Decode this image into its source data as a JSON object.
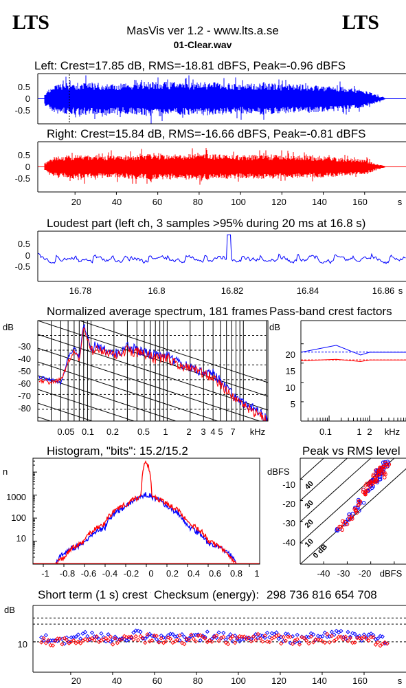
{
  "header": {
    "logo_left": "LTS",
    "logo_right": "LTS",
    "app_title": "MasVis ver 1.2 - www.lts.a.se",
    "file_name": "01-Clear.wav"
  },
  "colors": {
    "left": "#0000ff",
    "right": "#ff0000",
    "frame": "#000000",
    "background": "#ffffff"
  },
  "chart_data": [
    {
      "type": "area",
      "id": "left-waveform",
      "title": "Left: Crest=17.85 dB, RMS=-18.81 dBFS, Peak=-0.96 dBFS",
      "crest_db": 17.85,
      "rms_dbfs": -18.81,
      "peak_dbfs": -0.96,
      "y_ticks": [
        "0.5",
        "0",
        "-0.5"
      ],
      "ylim": [
        -0.85,
        0.85
      ],
      "xlim": [
        2,
        180
      ],
      "marker_x": 16.8,
      "envelope": {
        "x": [
          5,
          10,
          20,
          30,
          40,
          50,
          60,
          70,
          80,
          90,
          100,
          110,
          120,
          130,
          140,
          150,
          160,
          166,
          170
        ],
        "y": [
          0.18,
          0.5,
          0.55,
          0.55,
          0.5,
          0.55,
          0.6,
          0.55,
          0.58,
          0.55,
          0.5,
          0.55,
          0.5,
          0.5,
          0.45,
          0.4,
          0.3,
          0.12,
          0.02
        ]
      }
    },
    {
      "type": "area",
      "id": "right-waveform",
      "title": "Right: Crest=15.84 dB, RMS=-16.66 dBFS, Peak=-0.81 dBFS",
      "crest_db": 15.84,
      "rms_dbfs": -16.66,
      "peak_dbfs": -0.81,
      "y_ticks": [
        "0.5",
        "0",
        "-0.5"
      ],
      "x_ticks": [
        "20",
        "40",
        "60",
        "80",
        "100",
        "120",
        "140",
        "160",
        "s"
      ],
      "ylim": [
        -0.85,
        0.85
      ],
      "xlim": [
        2,
        180
      ],
      "envelope": {
        "x": [
          5,
          10,
          20,
          30,
          40,
          50,
          60,
          70,
          80,
          90,
          100,
          110,
          120,
          130,
          140,
          150,
          160,
          166,
          170
        ],
        "y": [
          0.12,
          0.35,
          0.4,
          0.4,
          0.38,
          0.42,
          0.45,
          0.42,
          0.45,
          0.42,
          0.4,
          0.42,
          0.4,
          0.38,
          0.35,
          0.32,
          0.25,
          0.1,
          0.02
        ]
      }
    },
    {
      "type": "line",
      "id": "loudest-part",
      "title": "Loudest part (left  ch, 3 samples >95% during 20 ms at 16.8 s)",
      "y_ticks": [
        "0.5",
        "0",
        "-0.5"
      ],
      "x_ticks": [
        "16.78",
        "16.8",
        "16.82",
        "16.84",
        "16.86",
        "s"
      ],
      "ylim": [
        -0.8,
        0.9
      ],
      "xlim": [
        16.767,
        16.87
      ],
      "peak": {
        "x": 16.8205,
        "y": 0.78
      }
    },
    {
      "type": "line",
      "id": "avg-spectrum",
      "title": "Normalized average spectrum, 181 frames",
      "ylabel": "dB",
      "y_ticks": [
        "-30",
        "-40",
        "-50",
        "-60",
        "-70",
        "-80"
      ],
      "x_ticks": [
        "0.05",
        "0.1",
        "0.2",
        "0.5",
        "1",
        "2",
        "3",
        "4",
        "5",
        "7",
        "kHz"
      ],
      "ylim": [
        -88,
        -20
      ],
      "xlim_khz": [
        0.02,
        21
      ],
      "x_scale": "log",
      "series": [
        {
          "color": "blue",
          "x": [
            0.02,
            0.03,
            0.04,
            0.05,
            0.06,
            0.07,
            0.08,
            0.1,
            0.12,
            0.15,
            0.2,
            0.3,
            0.5,
            0.7,
            1,
            1.5,
            2,
            3,
            4,
            5,
            7,
            10,
            14,
            20
          ],
          "y": [
            -58,
            -60,
            -62,
            -45,
            -38,
            -45,
            -22,
            -40,
            -36,
            -40,
            -43,
            -38,
            -42,
            -44,
            -44,
            -50,
            -52,
            -55,
            -55,
            -62,
            -70,
            -76,
            -80,
            -87
          ]
        },
        {
          "color": "red",
          "x": [
            0.02,
            0.03,
            0.04,
            0.05,
            0.06,
            0.07,
            0.08,
            0.1,
            0.12,
            0.15,
            0.2,
            0.3,
            0.5,
            0.7,
            1,
            1.5,
            2,
            3,
            4,
            5,
            7,
            10,
            14,
            20
          ],
          "y": [
            -60,
            -62,
            -60,
            -48,
            -40,
            -47,
            -24,
            -41,
            -38,
            -42,
            -44,
            -40,
            -43,
            -46,
            -45,
            -51,
            -53,
            -56,
            -58,
            -64,
            -72,
            -78,
            -82,
            -88
          ]
        }
      ]
    },
    {
      "type": "line",
      "id": "crest-vs-frequency",
      "title": "Pass-band crest factors",
      "ylabel": "dB",
      "y_ticks": [
        "20",
        "15",
        "10",
        "5"
      ],
      "x_ticks": [
        "0.1",
        "1",
        "2",
        "kHz"
      ],
      "ylim": [
        0,
        26
      ],
      "xlim_khz": [
        0.02,
        8
      ],
      "x_scale": "log",
      "series": [
        {
          "color": "blue",
          "x": [
            0.02,
            0.15,
            0.6,
            1,
            8
          ],
          "y": [
            17.8,
            19.6,
            17.1,
            17.8,
            17.8
          ]
        },
        {
          "color": "red",
          "x": [
            0.02,
            0.15,
            0.6,
            1,
            8
          ],
          "y": [
            15.6,
            16.0,
            15.4,
            15.8,
            15.8
          ]
        },
        {
          "color": "red",
          "x": [
            0.02,
            8
          ],
          "y": [
            15.84,
            15.84
          ]
        },
        {
          "color": "blue",
          "x": [
            0.02,
            8
          ],
          "y": [
            17.85,
            17.85
          ]
        }
      ]
    },
    {
      "type": "line",
      "id": "histogram",
      "title": "Histogram, \"bits\": 15.2/15.2",
      "ylabel": "n",
      "y_ticks": [
        "1000",
        "100",
        "10"
      ],
      "x_ticks": [
        "-1",
        "-0.8",
        "-0.6",
        "-0.4",
        "-0.2",
        "0",
        "0.2",
        "0.4",
        "0.6",
        "0.8",
        "1"
      ],
      "ylim_log": [
        1,
        40000
      ],
      "xlim": [
        -1.1,
        1.1
      ],
      "series": [
        {
          "color": "blue",
          "x": [
            -0.88,
            -0.8,
            -0.6,
            -0.4,
            -0.2,
            -0.05,
            0,
            0.05,
            0.2,
            0.4,
            0.6,
            0.8,
            0.88
          ],
          "y": [
            1,
            3,
            8,
            40,
            300,
            900,
            1100,
            900,
            300,
            40,
            8,
            3,
            1
          ]
        },
        {
          "color": "red",
          "x": [
            -0.88,
            -0.8,
            -0.6,
            -0.4,
            -0.2,
            -0.05,
            0,
            0.05,
            0.2,
            0.4,
            0.6,
            0.8,
            0.88
          ],
          "y": [
            1,
            2,
            10,
            60,
            400,
            900,
            30000,
            900,
            400,
            60,
            10,
            2,
            1
          ]
        }
      ]
    },
    {
      "type": "scatter",
      "id": "peak-vs-rms",
      "title": "Peak vs RMS level",
      "ylabel": "dBFS",
      "xlabel": "dBFS",
      "y_ticks": [
        "-10",
        "-20",
        "-30",
        "-40"
      ],
      "x_ticks": [
        "-40",
        "-30",
        "-20",
        "dBFS"
      ],
      "crest_lines": [
        "40",
        "30",
        "20",
        "10",
        "0 dB"
      ],
      "xlim": [
        -50,
        -5
      ],
      "ylim": [
        -50,
        0
      ],
      "series": [
        {
          "color": "blue",
          "x": [
            -34,
            -30,
            -28,
            -26,
            -24,
            -22,
            -20,
            -19,
            -18,
            -17,
            -16,
            -15,
            -14,
            -13,
            -20,
            -18,
            -16,
            -15
          ],
          "y": [
            -33,
            -30,
            -27,
            -24,
            -20,
            -16,
            -12,
            -10,
            -8,
            -6,
            -5,
            -4,
            -3,
            -2,
            -14,
            -11,
            -9,
            -7
          ]
        },
        {
          "color": "red",
          "x": [
            -33,
            -31,
            -29,
            -27,
            -25,
            -23,
            -21,
            -19,
            -18,
            -17,
            -16,
            -15,
            -14,
            -13,
            -22,
            -20,
            -17,
            -15
          ],
          "y": [
            -33,
            -31,
            -28,
            -25,
            -21,
            -17,
            -13,
            -11,
            -9,
            -7,
            -6,
            -5,
            -4,
            -3,
            -15,
            -12,
            -10,
            -8
          ]
        }
      ]
    },
    {
      "type": "scatter",
      "id": "short-term-crest",
      "title": "Short term (1 s) crest factors",
      "ylabel": "dB",
      "y_ticks": [
        "10"
      ],
      "x_ticks": [
        "20",
        "40",
        "60",
        "80",
        "100",
        "120",
        "140",
        "160",
        "s"
      ],
      "ylim": [
        0,
        22
      ],
      "xlim": [
        2,
        180
      ],
      "reference_lines": [
        17.85,
        15.84
      ],
      "series": [
        {
          "color": "blue",
          "x": [
            6,
            16,
            28,
            40,
            52,
            64,
            76,
            88,
            100,
            112,
            124,
            136,
            148,
            160,
            170
          ],
          "y": [
            11.5,
            10.5,
            12,
            11,
            12.5,
            11,
            11.5,
            12,
            11,
            12.5,
            11,
            11.8,
            12.2,
            11.5,
            10.8
          ]
        },
        {
          "color": "red",
          "x": [
            6,
            16,
            28,
            40,
            52,
            64,
            76,
            88,
            100,
            112,
            124,
            136,
            148,
            160,
            170
          ],
          "y": [
            10.5,
            10,
            11,
            10.5,
            11.5,
            10.2,
            10.8,
            11.2,
            10.4,
            11.6,
            10.2,
            11,
            11.3,
            10.6,
            10
          ]
        }
      ]
    }
  ],
  "checksum": {
    "label": "Checksum (energy):",
    "value": "298 736 816 654 708"
  }
}
